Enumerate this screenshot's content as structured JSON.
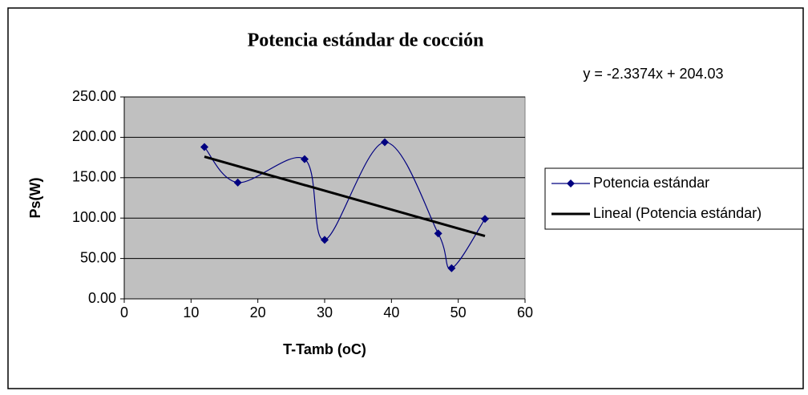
{
  "chart_data": {
    "type": "scatter",
    "title": "Potencia estándar de cocción",
    "xlabel": "T-Tamb (oC)",
    "ylabel": "Ps(W)",
    "annotation": "y = -2.3374x + 204.03",
    "legend": "right",
    "grid": true,
    "xlim": [
      0,
      60
    ],
    "xticks": [
      0,
      10,
      20,
      30,
      40,
      50,
      60
    ],
    "ylim": [
      0,
      250
    ],
    "yticks": [
      {
        "value": 0,
        "label": "0.00"
      },
      {
        "value": 50,
        "label": "50.00"
      },
      {
        "value": 100,
        "label": "100.00"
      },
      {
        "value": 150,
        "label": "150.00"
      },
      {
        "value": 200,
        "label": "200.00"
      },
      {
        "value": 250,
        "label": "250.00"
      }
    ],
    "series": [
      {
        "name": "Potencia estándar",
        "color": "#000080",
        "x": [
          12,
          17,
          27,
          30,
          39,
          47,
          49,
          54
        ],
        "values": [
          188,
          144,
          173,
          73,
          194,
          81,
          38,
          99
        ]
      },
      {
        "name": "Lineal (Potencia estándar)",
        "color": "#000000",
        "x": [
          12,
          54
        ],
        "values": [
          176.0,
          77.8
        ]
      }
    ]
  }
}
